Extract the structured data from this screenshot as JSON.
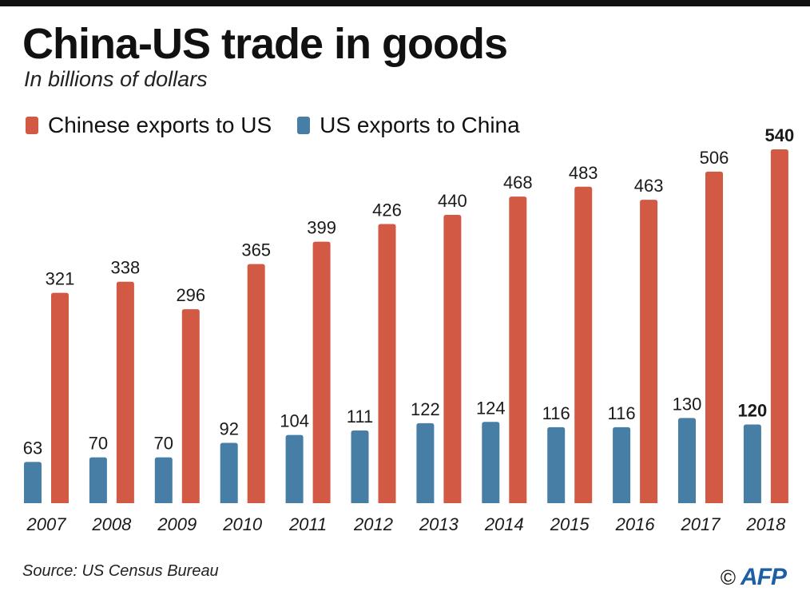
{
  "title": "China-US trade in goods",
  "subtitle": "In billions of dollars",
  "source": "Source: US Census Bureau",
  "credit": {
    "copyright_symbol": "©",
    "agency": "AFP"
  },
  "colors": {
    "chinese_exports": "#d25a45",
    "us_exports": "#467ea6"
  },
  "chart_data": {
    "type": "bar",
    "title": "China-US trade in goods",
    "subtitle": "In billions of dollars",
    "xlabel": "",
    "ylabel": "",
    "ylim": [
      0,
      540
    ],
    "grid": false,
    "legend": "top-left",
    "categories": [
      "2007",
      "2008",
      "2009",
      "2010",
      "2011",
      "2012",
      "2013",
      "2014",
      "2015",
      "2016",
      "2017",
      "2018"
    ],
    "series": [
      {
        "name": "US exports to China",
        "color": "#467ea6",
        "values": [
          63,
          70,
          70,
          92,
          104,
          111,
          122,
          124,
          116,
          116,
          130,
          120
        ]
      },
      {
        "name": "Chinese exports to US",
        "color": "#d25a45",
        "values": [
          321,
          338,
          296,
          365,
          399,
          426,
          440,
          468,
          483,
          463,
          506,
          540
        ]
      }
    ],
    "highlight_category": "2018"
  }
}
